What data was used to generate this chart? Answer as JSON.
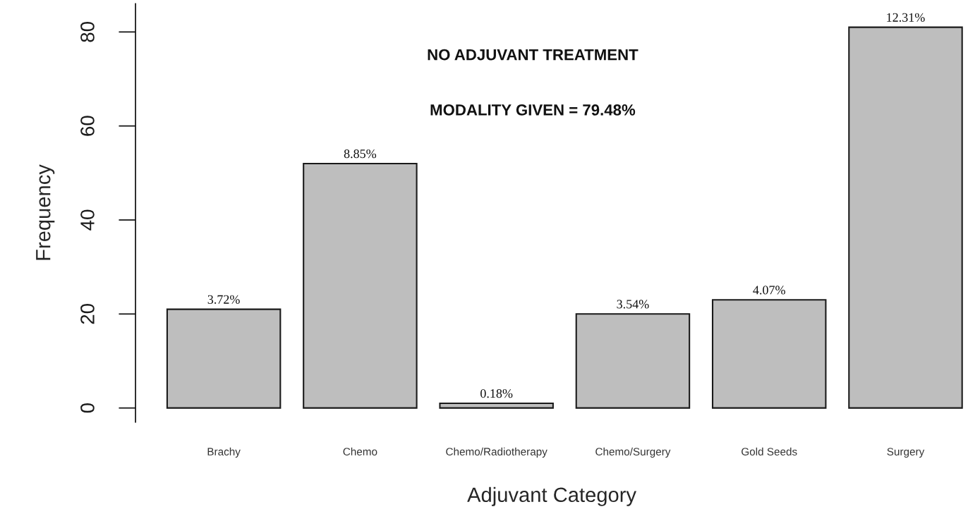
{
  "chart_data": {
    "type": "bar",
    "xlabel": "Adjuvant Category",
    "ylabel": "Frequency",
    "categories": [
      "Brachy",
      "Chemo",
      "Chemo/Radiotherapy",
      "Chemo/Surgery",
      "Gold Seeds",
      "Surgery"
    ],
    "values": [
      21,
      52,
      1,
      20,
      23,
      81
    ],
    "color": "#bebebe",
    "ylim": [
      -3,
      86
    ],
    "yticks": [
      0,
      20,
      40,
      60,
      80
    ],
    "annotations": [
      "NO ADJUVANT TREATMENT",
      "MODALITY GIVEN = 79.48%",
      {
        "text": "3.72%",
        "x": "Brachy",
        "y": 21
      },
      {
        "text": "8.85%",
        "x": "Chemo",
        "y": 52
      },
      {
        "text": "0.18%",
        "x": "Chemo/Radiotherapy",
        "y": 1
      },
      {
        "text": "3.54%",
        "x": "Chemo/Surgery",
        "y": 20
      },
      {
        "text": "4.07%",
        "x": "Gold Seeds",
        "y": 23
      },
      {
        "text": "12.31%",
        "x": "Surgery",
        "y": 81
      }
    ]
  }
}
